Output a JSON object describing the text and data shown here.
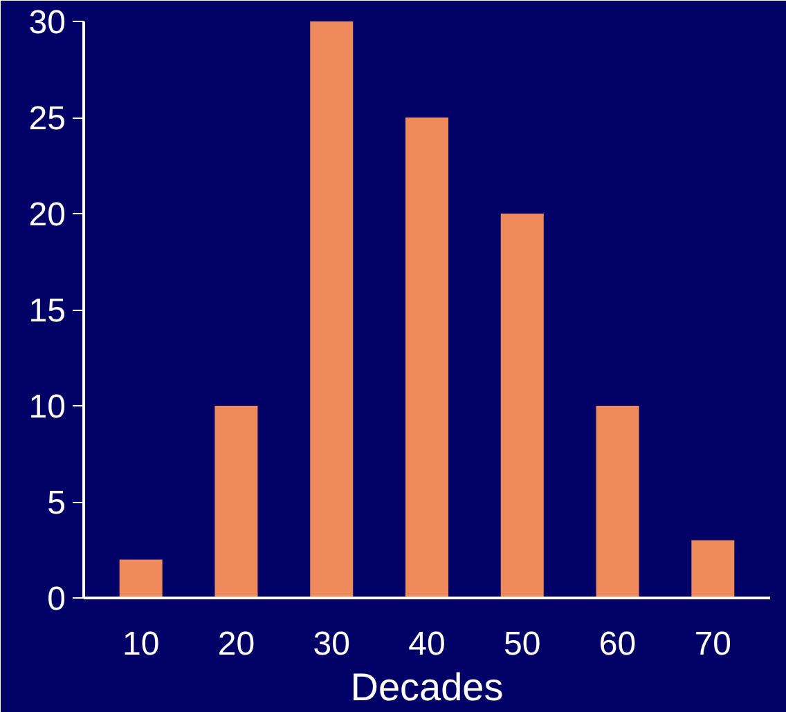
{
  "chart_data": {
    "type": "bar",
    "xlabel": "Decades",
    "categories": [
      "10",
      "20",
      "30",
      "40",
      "50",
      "60",
      "70"
    ],
    "values": [
      2,
      10,
      30,
      25,
      20,
      10,
      3
    ],
    "color": "#ef8a5c",
    "ylim": [
      0,
      30
    ],
    "yticks": [
      0,
      5,
      10,
      15,
      20,
      25,
      30
    ],
    "grid": false
  }
}
